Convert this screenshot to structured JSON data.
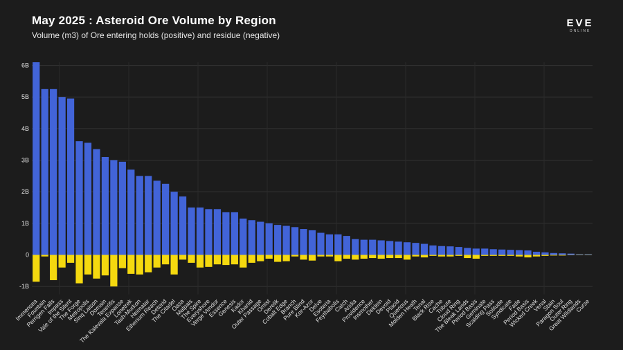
{
  "header": {
    "title": "May 2025 : Asteroid Ore Volume by Region",
    "subtitle": "Volume (m3) of Ore entering holds (positive) and residue (negative)"
  },
  "logo": {
    "text": "EVE",
    "subtext": "ONLINE"
  },
  "colors": {
    "positive": "#4264d8",
    "negative": "#f5d90f",
    "background": "#1c1c1c",
    "grid": "#333333"
  },
  "chart_data": {
    "type": "bar",
    "stacked": true,
    "title": "May 2025 : Asteroid Ore Volume by Region",
    "ylim": [
      -1.25,
      6.1
    ],
    "yticks": [
      -1,
      0,
      1,
      2,
      3,
      4,
      5,
      6
    ],
    "ytick_labels": [
      "-1B",
      "0",
      "1B",
      "2B",
      "3B",
      "4B",
      "5B",
      "6B"
    ],
    "grid": true,
    "categories": [
      "Immensea",
      "Fountain",
      "Perrigen Falls",
      "Impass",
      "Vale of the Silent",
      "The Forge",
      "Metropolis",
      "Sinq Laison",
      "Domain",
      "Tenerifis",
      "The Kalevala Expanse",
      "Lonetrek",
      "Tash-Murkon",
      "Heimatar",
      "Etherium Reach",
      "Detorid",
      "The Citadel",
      "Oasa",
      "Malpais",
      "The Spire",
      "Everyshore",
      "Verge Vendor",
      "Essence",
      "Genesis",
      "Kador",
      "Khanid",
      "Outer Passage",
      "Omist",
      "Derelik",
      "Cobalt Edge",
      "Branch",
      "Pure Blind",
      "Kor-Azor",
      "Delve",
      "Esoteria",
      "Feythabolis",
      "Catch",
      "Aridia",
      "Providence",
      "Insmother",
      "Deklein",
      "Devoid",
      "Placid",
      "Querious",
      "Molden Heath",
      "Tenal",
      "Black Rise",
      "Cache",
      "Tribute",
      "Cloud Ring",
      "The Bleak Lands",
      "Period Basis",
      "Geminate",
      "Scalding Pass",
      "Solitude",
      "Syndicate",
      "Fade",
      "Period Basis",
      "Wicked Creek",
      "Venal",
      "Stain",
      "Paragon Soul",
      "Outer Ring",
      "Great Wildlands",
      "Curse"
    ],
    "series": [
      {
        "values": [
          6.1,
          5.25,
          5.25,
          5.0,
          4.95,
          3.6,
          3.55,
          3.35,
          3.1,
          3.0,
          2.95,
          2.7,
          2.5,
          2.5,
          2.35,
          2.25,
          2.0,
          1.85,
          1.5,
          1.5,
          1.45,
          1.45,
          1.35,
          1.35,
          1.15,
          1.1,
          1.05,
          1.0,
          0.95,
          0.92,
          0.88,
          0.82,
          0.78,
          0.7,
          0.65,
          0.65,
          0.6,
          0.5,
          0.48,
          0.48,
          0.46,
          0.44,
          0.42,
          0.4,
          0.38,
          0.35,
          0.3,
          0.28,
          0.27,
          0.25,
          0.22,
          0.2,
          0.2,
          0.18,
          0.17,
          0.16,
          0.15,
          0.14,
          0.1,
          0.08,
          0.06,
          0.05,
          0.04,
          0.02,
          0.02
        ]
      },
      {
        "values": [
          -0.85,
          -0.05,
          -0.8,
          -0.4,
          -0.25,
          -0.9,
          -0.62,
          -0.75,
          -0.65,
          -1.0,
          -0.42,
          -0.6,
          -0.62,
          -0.55,
          -0.4,
          -0.3,
          -0.62,
          -0.15,
          -0.25,
          -0.4,
          -0.38,
          -0.3,
          -0.32,
          -0.3,
          -0.4,
          -0.25,
          -0.2,
          -0.12,
          -0.22,
          -0.2,
          -0.05,
          -0.15,
          -0.18,
          -0.05,
          -0.05,
          -0.2,
          -0.12,
          -0.15,
          -0.12,
          -0.1,
          -0.12,
          -0.1,
          -0.1,
          -0.15,
          -0.05,
          -0.08,
          -0.03,
          -0.05,
          -0.05,
          -0.03,
          -0.1,
          -0.12,
          -0.03,
          -0.03,
          -0.03,
          -0.03,
          -0.05,
          -0.08,
          -0.05,
          -0.03,
          -0.02,
          -0.02,
          -0.01,
          -0.01,
          -0.01
        ]
      }
    ]
  }
}
